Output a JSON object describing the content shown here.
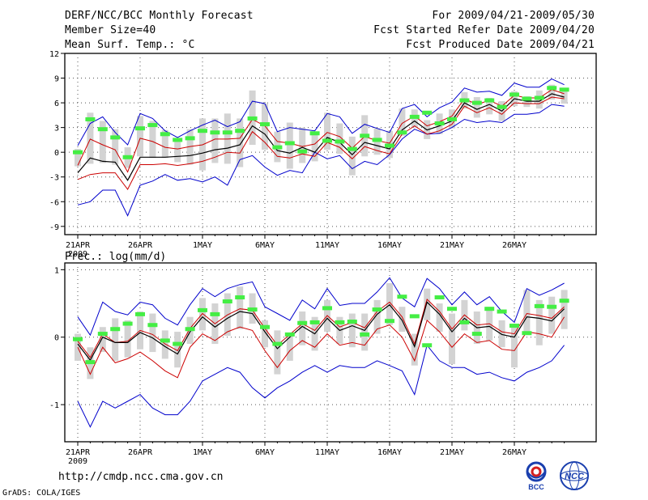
{
  "header": {
    "title": "DERF/NCC/BCC Monthly Forecast",
    "member_size": "Member Size=40",
    "variable": "Mean Surf. Temp.: °C",
    "period": "For 2009/04/21-2009/05/30",
    "started": "Fcst Started Refer Date 2009/04/20",
    "produced": "Fcst Produced Date 2009/04/21"
  },
  "footer": {
    "url": "http://cmdp.ncc.cma.gov.cn",
    "credit": "GrADS: COLA/IGES",
    "logo_left_text": "BCC",
    "logo_right_text": "NCC"
  },
  "colors": {
    "envelope": "#0000cc",
    "spread": "#cc0000",
    "mean": "#000000",
    "box": "#d3d3d3",
    "median": "#44ee44",
    "grid": "#555555"
  },
  "chart_data": [
    {
      "type": "line",
      "title": "Mean Surf. Temp.: °C",
      "x": [
        "21APR",
        "22APR",
        "23APR",
        "24APR",
        "25APR",
        "26APR",
        "27APR",
        "28APR",
        "29APR",
        "30APR",
        "1MAY",
        "2MAY",
        "3MAY",
        "4MAY",
        "5MAY",
        "6MAY",
        "7MAY",
        "8MAY",
        "9MAY",
        "10MAY",
        "11MAY",
        "12MAY",
        "13MAY",
        "14MAY",
        "15MAY",
        "16MAY",
        "17MAY",
        "18MAY",
        "19MAY",
        "20MAY",
        "21MAY",
        "22MAY",
        "23MAY",
        "24MAY",
        "25MAY",
        "26MAY",
        "27MAY",
        "28MAY",
        "29MAY",
        "30MAY"
      ],
      "xticks": [
        "21APR",
        "26APR",
        "1MAY",
        "6MAY",
        "11MAY",
        "16MAY",
        "21MAY",
        "26MAY"
      ],
      "xtick_sublabel": "2009",
      "ylim": [
        -10,
        12
      ],
      "yticks": [
        -9,
        -6,
        -3,
        0,
        3,
        6,
        9,
        12
      ],
      "series": [
        {
          "name": "max",
          "values": [
            -6.4,
            -6,
            -4.6,
            -4.6,
            -7.7,
            -4,
            -3.5,
            -2.7,
            -3.4,
            -3.2,
            -3.6,
            -3,
            -4,
            -0.9,
            -0.4,
            -1.8,
            -2.8,
            -2.2,
            -2.5,
            0,
            -0.8,
            -0.4,
            -2,
            -1.1,
            -1.5,
            -0.3,
            1.6,
            2.8,
            2.2,
            2.3,
            3,
            4,
            3.6,
            3.8,
            3.6,
            4.6,
            4.6,
            4.8,
            5.8,
            5.6
          ]
        },
        {
          "name": "max_hi",
          "values": [
            0.8,
            3.5,
            4.3,
            2.4,
            0.9,
            4.7,
            4.1,
            2.6,
            1.8,
            2.6,
            3.3,
            3.9,
            3.1,
            3.7,
            6.2,
            5.9,
            2.5,
            3,
            2.8,
            2.6,
            4.7,
            4.3,
            2.3,
            3.4,
            2.9,
            2.4,
            5.3,
            5.8,
            4.3,
            5.4,
            6.1,
            7.8,
            7.3,
            7.4,
            6.9,
            8.4,
            7.9,
            7.9,
            8.9,
            8.2
          ]
        },
        {
          "name": "spread_upper",
          "values": [
            -1.6,
            1.6,
            0.9,
            0.3,
            -2.4,
            1.7,
            1.3,
            0.6,
            0.4,
            0.7,
            0.9,
            1.6,
            1.6,
            1.7,
            4,
            3.2,
            1.3,
            1.1,
            0.7,
            1,
            2.4,
            1.9,
            0.5,
            1.9,
            1.4,
            1.1,
            3.5,
            4.4,
            3.2,
            3.7,
            4.4,
            6.5,
            5.8,
            6.3,
            5.6,
            6.9,
            6.6,
            6.6,
            7.6,
            7.1
          ]
        },
        {
          "name": "mean",
          "values": [
            -2.5,
            -0.7,
            -1.1,
            -1.2,
            -3.4,
            -0.6,
            -0.6,
            -0.6,
            -0.5,
            -0.4,
            -0.1,
            0.3,
            0.5,
            0.9,
            3.2,
            2.2,
            0.2,
            -0.1,
            0.6,
            0,
            1.8,
            1.2,
            -0.3,
            1.2,
            0.8,
            0.4,
            2.7,
            3.8,
            2.7,
            3.2,
            3.8,
            6,
            5.2,
            5.8,
            5,
            6.5,
            6.2,
            6.2,
            7.1,
            6.7
          ]
        },
        {
          "name": "spread_lower",
          "values": [
            -3.3,
            -2.7,
            -2.5,
            -2.5,
            -4.5,
            -1.5,
            -1.5,
            -1.4,
            -1.6,
            -1.4,
            -1.1,
            -0.6,
            0,
            -0.1,
            2.5,
            1.2,
            -0.5,
            -0.7,
            -0.2,
            -0.5,
            1.2,
            0.6,
            -0.8,
            0.7,
            0.2,
            -0.2,
            2.2,
            3.2,
            2.2,
            2.6,
            3.4,
            5.6,
            4.8,
            5.4,
            4.6,
            6,
            5.9,
            5.9,
            6.7,
            6.5
          ]
        }
      ],
      "boxes": {
        "name": "spread",
        "lower": [
          -1.7,
          -1.4,
          -1.3,
          -1.5,
          -1.9,
          -0.5,
          -0.7,
          -0.7,
          -1.2,
          -1.5,
          -2.2,
          -1.3,
          -1.4,
          -1.8,
          0.9,
          0.3,
          -1.2,
          -2,
          -1.3,
          -1.1,
          0.3,
          -0.2,
          -2.8,
          -0.5,
          -0.3,
          -0.7,
          2,
          3,
          1.6,
          2.2,
          2.9,
          5.3,
          4.2,
          4.6,
          3.8,
          5.6,
          5.5,
          5.3,
          6.4,
          5.9
        ],
        "upper": [
          0.4,
          4.8,
          3.8,
          2.8,
          0.6,
          4.4,
          3.8,
          2.7,
          1.7,
          2.8,
          4.1,
          4.1,
          4.7,
          4.1,
          7.5,
          5.9,
          2.5,
          3.6,
          3,
          2.4,
          4.8,
          3.5,
          1.9,
          4.5,
          2.9,
          2.6,
          5.3,
          5.2,
          3.9,
          4.7,
          5.2,
          7.3,
          6.7,
          6.6,
          6.2,
          7.4,
          6.8,
          7.5,
          8.2,
          7.8
        ]
      },
      "medians": [
        0,
        4,
        2.8,
        1.8,
        -0.6,
        2.9,
        3.3,
        2.2,
        1.5,
        1.7,
        2.6,
        2.4,
        2.4,
        2.6,
        4.1,
        3.4,
        0.6,
        1.1,
        0.1,
        2.3,
        1.4,
        1.3,
        0.4,
        2,
        1.5,
        0.8,
        2.4,
        4.3,
        4.8,
        3.5,
        4,
        6.3,
        6,
        6.3,
        5.5,
        7,
        6.5,
        6.6,
        7.8,
        7.6
      ]
    },
    {
      "type": "line",
      "title": "Prec.: log(mm/d)",
      "x": [
        "21APR",
        "22APR",
        "23APR",
        "24APR",
        "25APR",
        "26APR",
        "27APR",
        "28APR",
        "29APR",
        "30APR",
        "1MAY",
        "2MAY",
        "3MAY",
        "4MAY",
        "5MAY",
        "6MAY",
        "7MAY",
        "8MAY",
        "9MAY",
        "10MAY",
        "11MAY",
        "12MAY",
        "13MAY",
        "14MAY",
        "15MAY",
        "16MAY",
        "17MAY",
        "18MAY",
        "19MAY",
        "20MAY",
        "21MAY",
        "22MAY",
        "23MAY",
        "24MAY",
        "25MAY",
        "26MAY",
        "27MAY",
        "28MAY",
        "29MAY",
        "30MAY"
      ],
      "xticks": [
        "21APR",
        "26APR",
        "1MAY",
        "6MAY",
        "11MAY",
        "16MAY",
        "21MAY",
        "26MAY"
      ],
      "xtick_sublabel": "2009",
      "ylim": [
        -1.55,
        1.1
      ],
      "yticks": [
        -1,
        0,
        1
      ],
      "series": [
        {
          "name": "max",
          "values": [
            -0.95,
            -1.33,
            -0.95,
            -1.05,
            -0.95,
            -0.85,
            -1.05,
            -1.15,
            -1.15,
            -0.95,
            -0.65,
            -0.55,
            -0.45,
            -0.52,
            -0.75,
            -0.9,
            -0.75,
            -0.65,
            -0.52,
            -0.42,
            -0.52,
            -0.42,
            -0.45,
            -0.45,
            -0.35,
            -0.42,
            -0.5,
            -0.85,
            -0.12,
            -0.35,
            -0.45,
            -0.45,
            -0.55,
            -0.52,
            -0.6,
            -0.65,
            -0.52,
            -0.45,
            -0.35,
            -0.12
          ]
        },
        {
          "name": "max_hi",
          "values": [
            0.3,
            0.03,
            0.52,
            0.38,
            0.33,
            0.52,
            0.48,
            0.28,
            0.18,
            0.48,
            0.72,
            0.6,
            0.72,
            0.78,
            0.82,
            0.45,
            0.35,
            0.25,
            0.55,
            0.42,
            0.72,
            0.47,
            0.5,
            0.5,
            0.67,
            0.88,
            0.58,
            0.45,
            0.87,
            0.72,
            0.48,
            0.67,
            0.48,
            0.6,
            0.38,
            0.22,
            0.72,
            0.62,
            0.7,
            0.8
          ]
        },
        {
          "name": "spread_upper",
          "values": [
            -0.06,
            -0.3,
            0.05,
            -0.08,
            -0.06,
            0.1,
            0.04,
            -0.1,
            -0.2,
            0.13,
            0.35,
            0.2,
            0.33,
            0.42,
            0.4,
            0.13,
            -0.12,
            0.04,
            0.2,
            0.1,
            0.32,
            0.15,
            0.22,
            0.14,
            0.38,
            0.52,
            0.3,
            -0.1,
            0.56,
            0.38,
            0.12,
            0.33,
            0.18,
            0.2,
            0.08,
            0.05,
            0.35,
            0.32,
            0.28,
            0.45
          ]
        },
        {
          "name": "mean",
          "values": [
            -0.1,
            -0.34,
            0,
            -0.08,
            -0.08,
            0.07,
            -0.01,
            -0.14,
            -0.25,
            0.08,
            0.3,
            0.15,
            0.28,
            0.38,
            0.35,
            0.08,
            -0.17,
            0,
            0.16,
            0.05,
            0.28,
            0.1,
            0.17,
            0.1,
            0.34,
            0.48,
            0.25,
            -0.14,
            0.52,
            0.34,
            0.08,
            0.28,
            0.14,
            0.16,
            0.04,
            0,
            0.3,
            0.28,
            0.24,
            0.42
          ]
        },
        {
          "name": "spread_lower",
          "values": [
            -0.15,
            -0.55,
            -0.15,
            -0.38,
            -0.32,
            -0.22,
            -0.35,
            -0.5,
            -0.6,
            -0.15,
            0.05,
            -0.05,
            0.08,
            0.15,
            0.1,
            -0.2,
            -0.45,
            -0.2,
            -0.05,
            -0.15,
            0.05,
            -0.12,
            -0.08,
            -0.12,
            0.12,
            0.18,
            0,
            -0.35,
            0.25,
            0.08,
            -0.15,
            0.05,
            -0.08,
            -0.05,
            -0.18,
            -0.2,
            0.08,
            0.05,
            0,
            0.3
          ]
        }
      ],
      "boxes": {
        "name": "spread",
        "lower": [
          -0.35,
          -0.62,
          -0.22,
          -0.35,
          -0.3,
          -0.18,
          -0.22,
          -0.32,
          -0.45,
          -0.1,
          0.1,
          -0.1,
          0.02,
          0.12,
          0.2,
          -0.15,
          -0.55,
          -0.35,
          -0.12,
          -0.2,
          0.08,
          -0.1,
          -0.15,
          -0.2,
          0.05,
          0.18,
          0.08,
          -0.42,
          0.25,
          0.08,
          -0.4,
          0.1,
          -0.1,
          -0.05,
          -0.15,
          -0.45,
          0.05,
          -0.12,
          0.05,
          0.12
        ],
        "upper": [
          0.05,
          -0.15,
          0.15,
          0.28,
          0.25,
          0.38,
          0.35,
          0.1,
          0.08,
          0.3,
          0.58,
          0.5,
          0.65,
          0.75,
          0.65,
          0.25,
          0.1,
          0.05,
          0.38,
          0.3,
          0.55,
          0.3,
          0.35,
          0.35,
          0.55,
          0.8,
          0.45,
          0.05,
          0.72,
          0.5,
          0.35,
          0.55,
          0.38,
          0.45,
          0.25,
          0.15,
          0.7,
          0.55,
          0.6,
          0.7
        ]
      },
      "medians": [
        -0.03,
        -0.37,
        0.05,
        0.12,
        0.2,
        0.34,
        0.18,
        -0.05,
        -0.1,
        0.12,
        0.4,
        0.34,
        0.53,
        0.59,
        0.41,
        0.15,
        -0.1,
        0.04,
        0.21,
        0.22,
        0.43,
        0.22,
        0.23,
        0.04,
        0.41,
        0.24,
        0.6,
        0.31,
        -0.12,
        0.59,
        0.42,
        0.22,
        0.05,
        0.42,
        0.38,
        0.17,
        0.06,
        0.46,
        0.45,
        0.54
      ]
    }
  ]
}
